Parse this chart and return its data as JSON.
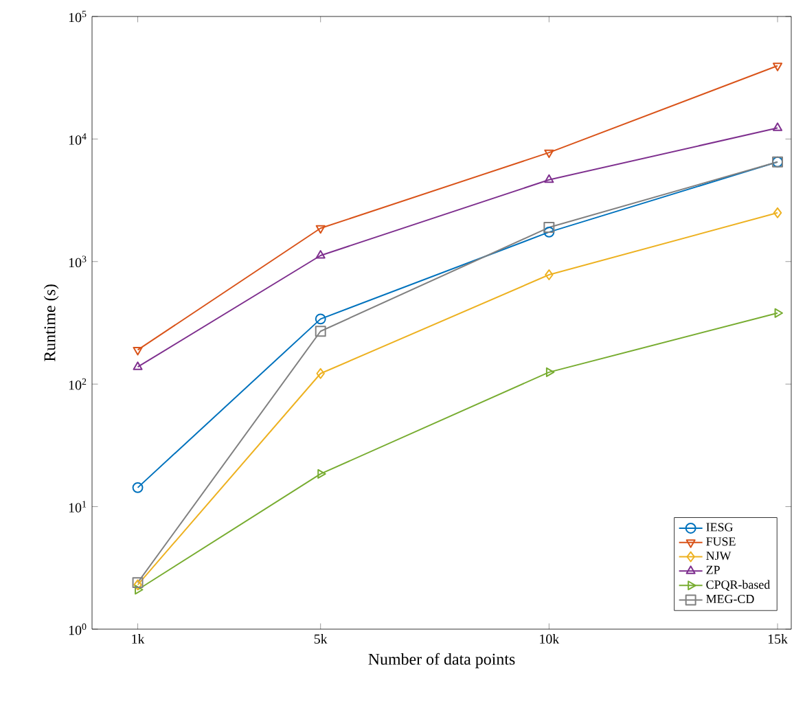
{
  "chart_data": {
    "type": "line",
    "xlabel": "Number of data points",
    "ylabel": "Runtime (s)",
    "x": [
      1000,
      5000,
      10000,
      15000
    ],
    "xlim": [
      0,
      15300
    ],
    "xticks": [
      {
        "value": 1000,
        "label": "1k"
      },
      {
        "value": 5000,
        "label": "5k"
      },
      {
        "value": 10000,
        "label": "10k"
      },
      {
        "value": 15000,
        "label": "15k"
      }
    ],
    "log": "y",
    "ylim": [
      1,
      100000
    ],
    "yticks": [
      {
        "value": 1,
        "label": "10$^{0}$"
      },
      {
        "value": 10,
        "label": "10$^{1}$"
      },
      {
        "value": 100,
        "label": "10$^{2}$"
      },
      {
        "value": 1000,
        "label": "10$^{3}$"
      },
      {
        "value": 10000,
        "label": "10$^{4}$"
      },
      {
        "value": 100000,
        "label": "10$^{5}$"
      }
    ],
    "grid": false,
    "legend": "bottom right",
    "line_style": "solid",
    "series": [
      {
        "name": "IESG",
        "color": "#0072bd",
        "marker": "circle",
        "values": [
          14.3,
          340,
          1740,
          6500
        ]
      },
      {
        "name": "FUSE",
        "color": "#d95319",
        "marker": "triangle_down",
        "values": [
          190,
          1870,
          7750,
          39600
        ]
      },
      {
        "name": "NJW",
        "color": "#edb120",
        "marker": "diamond",
        "values": [
          2.3,
          122,
          780,
          2500
        ]
      },
      {
        "name": "ZP",
        "color": "#7e2f8e",
        "marker": "triangle",
        "values": [
          138,
          1120,
          4650,
          12300
        ]
      },
      {
        "name": "CPQR-based",
        "color": "#77ac30",
        "marker": "triangle_right",
        "values": [
          2.1,
          18.5,
          125,
          380
        ]
      },
      {
        "name": "MEG-CD",
        "color": "#808080",
        "marker": "square",
        "values": [
          2.4,
          270,
          1900,
          6500
        ]
      }
    ]
  }
}
